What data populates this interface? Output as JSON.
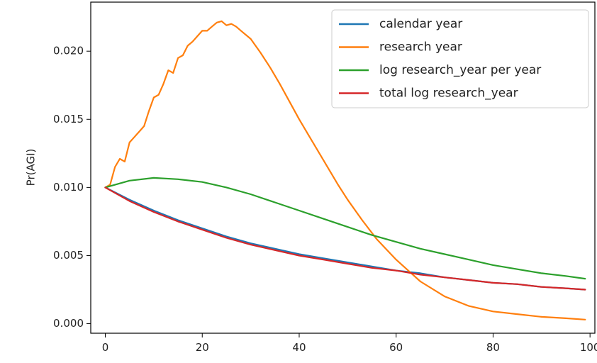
{
  "chart_data": {
    "type": "line",
    "title": "",
    "xlabel": "",
    "ylabel": "Pr(AGI)",
    "xlim": [
      -3,
      101
    ],
    "ylim": [
      -0.0007,
      0.0236
    ],
    "xticks": [
      0,
      20,
      40,
      60,
      80,
      100
    ],
    "xtick_labels": [
      "0",
      "20",
      "40",
      "60",
      "80",
      "100"
    ],
    "yticks": [
      0.0,
      0.005,
      0.01,
      0.015,
      0.02
    ],
    "ytick_labels": [
      "0.000",
      "0.005",
      "0.010",
      "0.015",
      "0.020"
    ],
    "grid": false,
    "legend_position": "top-right",
    "series": [
      {
        "name": "calendar year",
        "color": "#1f77b4",
        "x": [
          0,
          5,
          10,
          15,
          20,
          25,
          30,
          35,
          40,
          45,
          50,
          55,
          60,
          65,
          70,
          75,
          80,
          85,
          90,
          95,
          99
        ],
        "y": [
          0.01,
          0.0091,
          0.0083,
          0.0076,
          0.007,
          0.0064,
          0.0059,
          0.0055,
          0.0051,
          0.0048,
          0.0045,
          0.0042,
          0.0039,
          0.0037,
          0.0034,
          0.0032,
          0.003,
          0.0029,
          0.0027,
          0.0026,
          0.0025
        ]
      },
      {
        "name": "research year",
        "color": "#ff7f0e",
        "x": [
          0,
          1,
          2,
          3,
          4,
          5,
          6,
          7,
          8,
          9,
          10,
          11,
          12,
          13,
          14,
          15,
          16,
          17,
          18,
          19,
          20,
          21,
          22,
          23,
          24,
          25,
          26,
          27,
          28,
          30,
          32,
          34,
          36,
          38,
          40,
          42,
          45,
          48,
          50,
          53,
          56,
          60,
          65,
          70,
          75,
          80,
          85,
          90,
          95,
          99
        ],
        "y": [
          0.01,
          0.0102,
          0.0115,
          0.0121,
          0.0119,
          0.0133,
          0.0137,
          0.0141,
          0.0145,
          0.0156,
          0.0166,
          0.0168,
          0.0176,
          0.0186,
          0.0184,
          0.0195,
          0.0197,
          0.0204,
          0.0207,
          0.0211,
          0.0215,
          0.0215,
          0.0218,
          0.0221,
          0.0222,
          0.0219,
          0.022,
          0.0218,
          0.0215,
          0.0209,
          0.0199,
          0.0188,
          0.0176,
          0.0163,
          0.015,
          0.0138,
          0.012,
          0.0102,
          0.0091,
          0.0076,
          0.0062,
          0.0047,
          0.0031,
          0.002,
          0.0013,
          0.0009,
          0.0007,
          0.0005,
          0.0004,
          0.0003
        ]
      },
      {
        "name": "log research_year per year",
        "color": "#2ca02c",
        "x": [
          0,
          5,
          10,
          15,
          20,
          25,
          30,
          35,
          40,
          45,
          50,
          55,
          60,
          65,
          70,
          75,
          80,
          85,
          90,
          95,
          99
        ],
        "y": [
          0.01,
          0.0105,
          0.0107,
          0.0106,
          0.0104,
          0.01,
          0.0095,
          0.0089,
          0.0083,
          0.0077,
          0.0071,
          0.0065,
          0.006,
          0.0055,
          0.0051,
          0.0047,
          0.0043,
          0.004,
          0.0037,
          0.0035,
          0.0033
        ]
      },
      {
        "name": "total log research_year",
        "color": "#d62728",
        "x": [
          0,
          5,
          10,
          15,
          20,
          25,
          30,
          35,
          40,
          45,
          50,
          55,
          60,
          65,
          70,
          75,
          80,
          85,
          90,
          95,
          99
        ],
        "y": [
          0.01,
          0.009,
          0.0082,
          0.0075,
          0.0069,
          0.0063,
          0.0058,
          0.0054,
          0.005,
          0.0047,
          0.0044,
          0.0041,
          0.0039,
          0.0036,
          0.0034,
          0.0032,
          0.003,
          0.0029,
          0.0027,
          0.0026,
          0.0025
        ]
      }
    ]
  }
}
